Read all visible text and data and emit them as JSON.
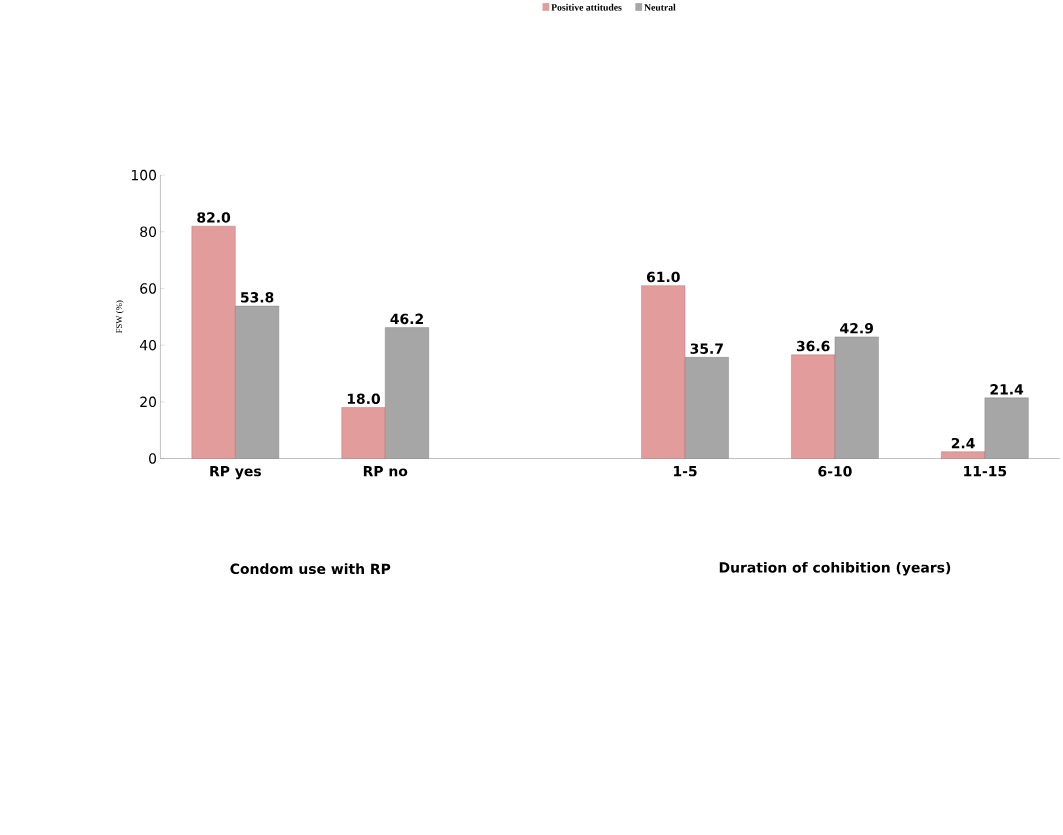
{
  "chart_data": {
    "type": "bar",
    "ylabel": "FSW (%)",
    "categories": [
      "RP yes",
      "RP no",
      null,
      "1-5",
      "6-10",
      "11-15"
    ],
    "series": [
      {
        "name": "Positive attitudes",
        "color": "#e39c9c",
        "values": [
          82.0,
          18.0,
          null,
          61.0,
          36.6,
          2.4
        ],
        "value_labels": [
          "82.0",
          "18.0",
          null,
          "61.0",
          "36.6",
          "2.4"
        ]
      },
      {
        "name": "Neutral",
        "color": "#a6a6a6",
        "values": [
          53.8,
          46.2,
          null,
          35.7,
          42.9,
          21.4
        ],
        "value_labels": [
          "53.8",
          "46.2",
          null,
          "35.7",
          "42.9",
          "21.4"
        ]
      }
    ],
    "ylim": [
      0,
      100
    ],
    "yticks": [
      0,
      20,
      40,
      60,
      80,
      100
    ],
    "grid": false,
    "legend": "top",
    "annotations": [
      "Condom use with RP",
      "Duration of cohibition (years)"
    ]
  }
}
